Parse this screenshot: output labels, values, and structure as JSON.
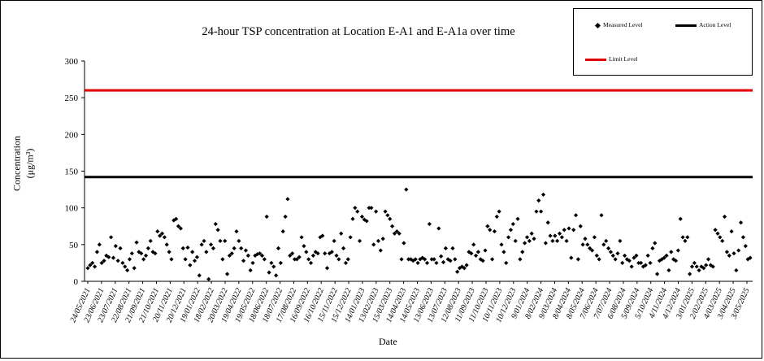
{
  "chart_data": {
    "type": "scatter",
    "title": "24-hour TSP concentration  at Location  E-A1 and E-A1a over time",
    "xlabel": "Date",
    "ylabel": "Concentration",
    "ylabel_unit": "(μg/m³)",
    "ylim": [
      0,
      300
    ],
    "y_ticks": [
      "0",
      "50",
      "100",
      "150",
      "200",
      "250",
      "300"
    ],
    "x_tick_labels": [
      "24/05/2021",
      "23/06/2021",
      "23/07/2021",
      "22/08/2021",
      "21/09/2021",
      "21/10/2021",
      "20/11/2021",
      "20/12/2021",
      "19/01/2022",
      "18/02/2022",
      "20/03/2022",
      "19/04/2022",
      "19/05/2022",
      "18/06/2022",
      "18/07/2022",
      "17/08/2022",
      "16/09/2022",
      "16/10/2022",
      "15/11/2022",
      "15/12/2022",
      "14/01/2023",
      "13/02/2023",
      "15/03/2023",
      "14/04/2023",
      "14/05/2023",
      "13/06/2023",
      "13/07/2023",
      "12/08/2023",
      "11/09/2023",
      "11/10/2023",
      "10/11/2023",
      "10/12/2023",
      "9/01/2024",
      "8/02/2024",
      "9/03/2024",
      "8/04/2024",
      "8/05/2024",
      "7/06/2024",
      "7/07/2024",
      "6/08/2024",
      "5/09/2024",
      "5/10/2024",
      "4/11/2024",
      "4/12/2024",
      "3/01/2025",
      "2/02/2025",
      "4/03/2025",
      "3/04/2025",
      "3/05/2025"
    ],
    "grid": false,
    "legend_position": "top-right",
    "series": [
      {
        "name": "Measured Level",
        "marker": "diamond",
        "color": "#000000",
        "values": [
          18,
          22,
          25,
          20,
          40,
          50,
          25,
          28,
          35,
          33,
          60,
          32,
          48,
          28,
          45,
          25,
          20,
          15,
          30,
          38,
          18,
          53,
          40,
          38,
          30,
          35,
          45,
          55,
          40,
          38,
          68,
          62,
          65,
          60,
          50,
          40,
          30,
          83,
          85,
          75,
          72,
          45,
          30,
          46,
          22,
          40,
          28,
          33,
          8,
          50,
          55,
          40,
          3,
          50,
          45,
          78,
          70,
          55,
          30,
          55,
          10,
          35,
          38,
          45,
          68,
          55,
          45,
          28,
          42,
          35,
          15,
          25,
          35,
          37,
          38,
          35,
          30,
          88,
          12,
          25,
          20,
          8,
          45,
          25,
          68,
          88,
          112,
          35,
          38,
          30,
          30,
          33,
          60,
          48,
          40,
          30,
          25,
          35,
          40,
          38,
          60,
          62,
          38,
          18,
          38,
          40,
          55,
          35,
          30,
          65,
          45,
          25,
          30,
          60,
          85,
          100,
          95,
          55,
          88,
          84,
          82,
          100,
          100,
          50,
          95,
          55,
          42,
          58,
          95,
          90,
          85,
          75,
          65,
          68,
          65,
          30,
          52,
          125,
          30,
          30,
          28,
          30,
          25,
          30,
          32,
          30,
          25,
          78,
          30,
          30,
          25,
          72,
          34,
          26,
          45,
          30,
          28,
          45,
          30,
          13,
          18,
          20,
          18,
          22,
          40,
          38,
          50,
          35,
          40,
          30,
          28,
          42,
          75,
          70,
          30,
          68,
          88,
          95,
          50,
          40,
          25,
          60,
          70,
          78,
          55,
          85,
          30,
          40,
          52,
          60,
          55,
          65,
          58,
          95,
          110,
          95,
          118,
          52,
          80,
          62,
          55,
          62,
          55,
          65,
          60,
          70,
          55,
          72,
          32,
          70,
          90,
          30,
          75,
          50,
          58,
          50,
          45,
          42,
          60,
          35,
          30,
          90,
          50,
          55,
          45,
          40,
          35,
          30,
          38,
          55,
          25,
          35,
          30,
          28,
          20,
          32,
          35,
          25,
          25,
          20,
          22,
          35,
          25,
          45,
          52,
          10,
          28,
          30,
          32,
          35,
          15,
          40,
          30,
          28,
          42,
          85,
          60,
          55,
          60,
          10,
          20,
          25,
          20,
          15,
          20,
          18,
          22,
          30,
          22,
          20,
          70,
          65,
          60,
          55,
          88,
          40,
          35,
          68,
          38,
          15,
          42,
          80,
          60,
          48,
          30,
          32
        ]
      }
    ],
    "reference_lines": [
      {
        "name": "Action Level",
        "value": 142,
        "color": "#000000"
      },
      {
        "name": "Limit Level",
        "value": 260,
        "color": "#e00000"
      }
    ]
  }
}
